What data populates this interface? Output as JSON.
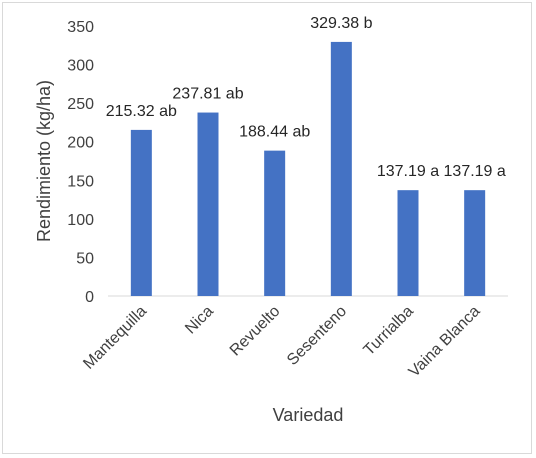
{
  "chart_data": {
    "type": "bar",
    "categories": [
      "Mantequilla",
      "Nica",
      "Revuelto",
      "Sesenteno",
      "Turrialba",
      "Vaina Blanca"
    ],
    "values": [
      215.32,
      237.81,
      188.44,
      329.38,
      137.19,
      137.19
    ],
    "data_labels": [
      "215.32 ab",
      "237.81 ab",
      "188.44 ab",
      "329.38 b",
      "137.19 a",
      "137.19 a"
    ],
    "yticks": [
      0,
      50,
      100,
      150,
      200,
      250,
      300,
      350
    ],
    "ylim": [
      0,
      350
    ],
    "xlabel": "Variedad",
    "ylabel": "Rendimiento (kg/ha)",
    "grid": false,
    "legend": "none",
    "bar_color": "#4472c4",
    "axis_color": "#d9d9d9"
  }
}
